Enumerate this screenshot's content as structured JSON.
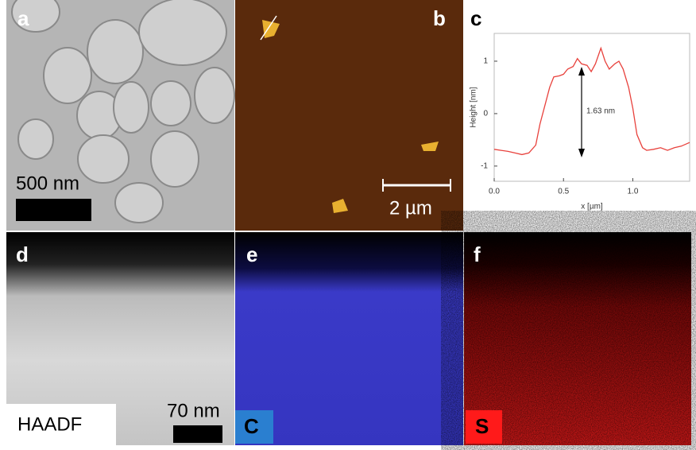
{
  "panels": {
    "a": {
      "label": "a",
      "scale": "500 nm"
    },
    "b": {
      "label": "b",
      "scale": "2 µm"
    },
    "c": {
      "label": "c"
    },
    "d": {
      "label": "d",
      "tag": "HAADF",
      "scale": "70 nm"
    },
    "e": {
      "label": "e",
      "tag": "C"
    },
    "f": {
      "label": "f",
      "tag": "S"
    }
  },
  "chart_data": {
    "type": "line",
    "xlabel": "x [µm]",
    "ylabel": "Height [nm]",
    "annotation": "1.63 nm",
    "color": "#e8413c",
    "x": [
      0.0,
      0.05,
      0.1,
      0.15,
      0.2,
      0.25,
      0.3,
      0.33,
      0.37,
      0.4,
      0.43,
      0.47,
      0.5,
      0.53,
      0.57,
      0.6,
      0.63,
      0.67,
      0.7,
      0.73,
      0.77,
      0.8,
      0.83,
      0.87,
      0.9,
      0.93,
      0.97,
      1.0,
      1.03,
      1.07,
      1.1,
      1.15,
      1.2,
      1.25,
      1.3,
      1.35,
      1.41
    ],
    "values": [
      -0.68,
      -0.7,
      -0.72,
      -0.75,
      -0.78,
      -0.75,
      -0.6,
      -0.2,
      0.2,
      0.5,
      0.7,
      0.72,
      0.75,
      0.85,
      0.9,
      1.05,
      0.95,
      0.92,
      0.8,
      0.95,
      1.25,
      1.0,
      0.85,
      0.95,
      1.0,
      0.85,
      0.5,
      0.1,
      -0.4,
      -0.65,
      -0.7,
      -0.68,
      -0.65,
      -0.7,
      -0.65,
      -0.62,
      -0.55
    ],
    "xlim": [
      0,
      1.41
    ],
    "ylim": [
      -1.29,
      1.53
    ],
    "xticks": [
      {
        "value": 0,
        "label": "0.0"
      },
      0.5,
      {
        "value": 1,
        "label": "1.0"
      }
    ],
    "yticks": [
      -1,
      0,
      1
    ]
  }
}
